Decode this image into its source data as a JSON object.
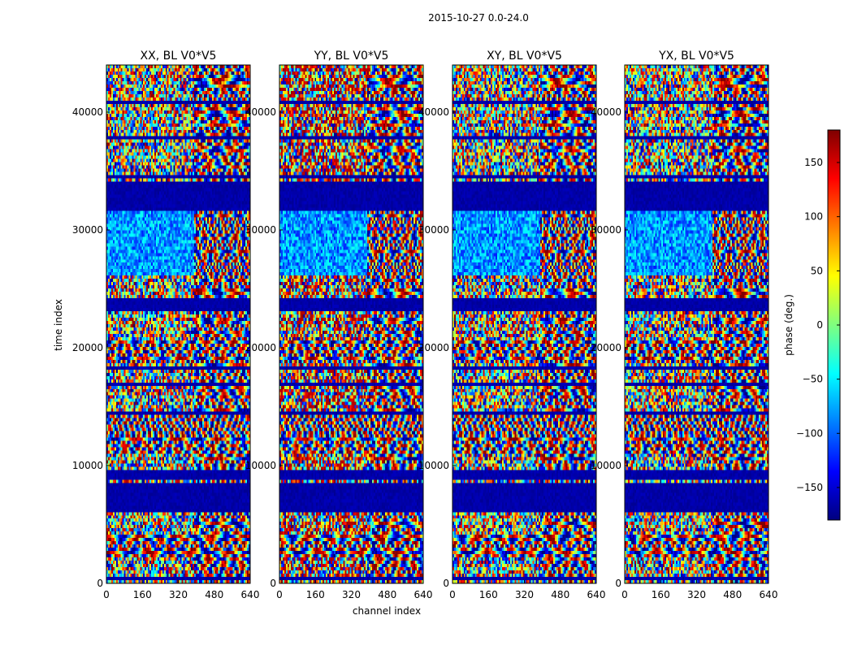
{
  "chart_data": {
    "type": "heatmap",
    "suptitle": "2015-10-27 0.0-24.0",
    "xlabel": "channel index",
    "ylabel": "time index",
    "xlim": [
      0,
      640
    ],
    "ylim": [
      0,
      44000
    ],
    "xticks": [
      0,
      160,
      320,
      480,
      640
    ],
    "yticks": [
      0,
      10000,
      20000,
      30000,
      40000
    ],
    "panels": [
      {
        "title": "XX, BL V0*V5"
      },
      {
        "title": "YY, BL V0*V5"
      },
      {
        "title": "XY, BL V0*V5"
      },
      {
        "title": "YX, BL V0*V5"
      }
    ],
    "colorbar": {
      "label": "phase (deg.)",
      "range": [
        -180,
        180
      ],
      "ticks": [
        -150,
        -100,
        -50,
        0,
        50,
        100,
        150
      ],
      "colormap": "jet"
    }
  }
}
